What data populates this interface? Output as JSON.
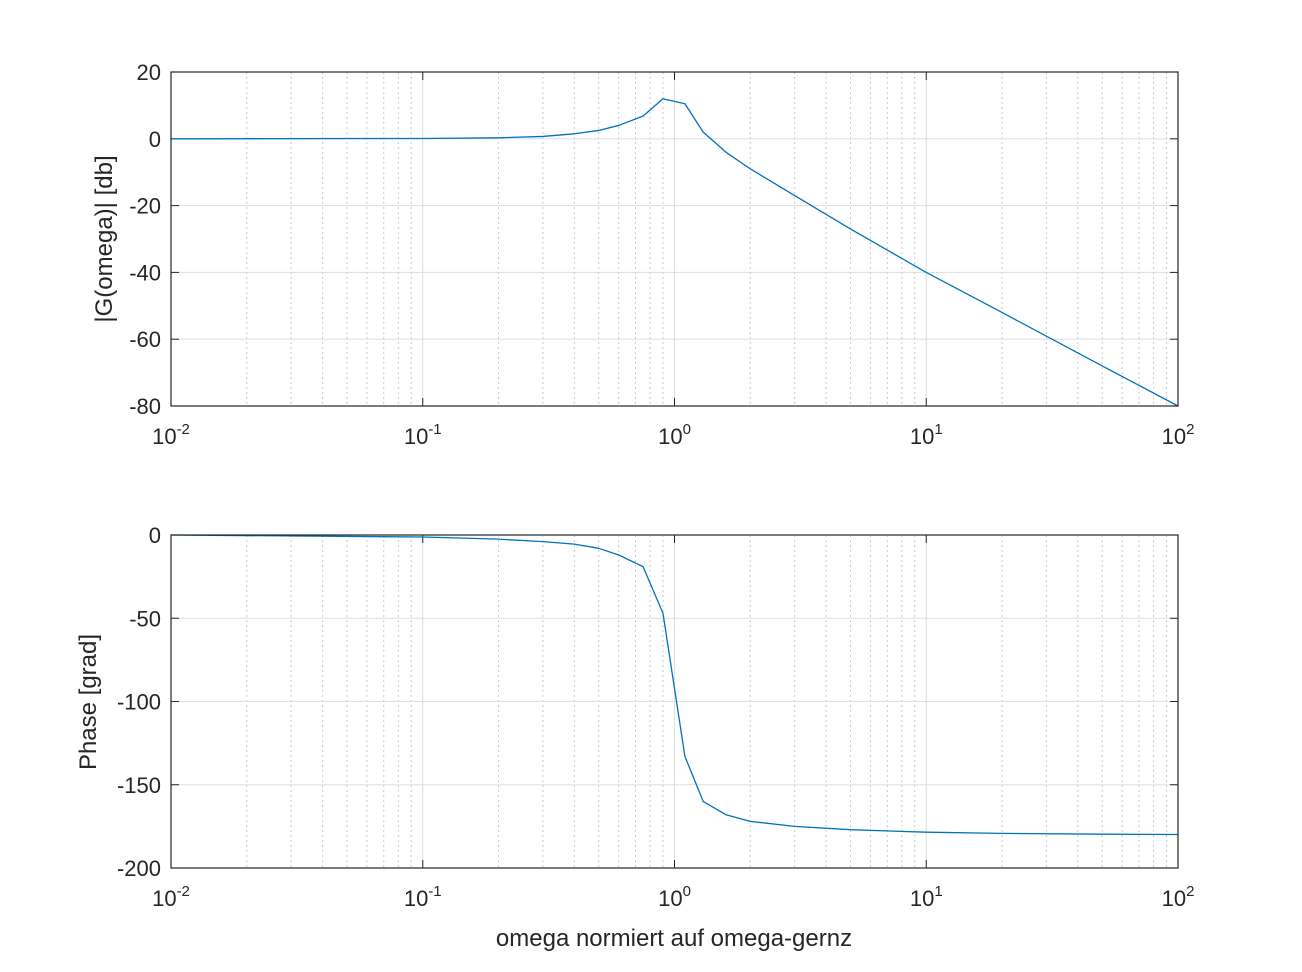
{
  "chart_data": [
    {
      "type": "line",
      "xscale": "log",
      "xlim": [
        0.01,
        100
      ],
      "ylim": [
        -80,
        20
      ],
      "xlabel": "",
      "ylabel": "|G(omega)| [db]",
      "yticks": [
        "20",
        "0",
        "-20",
        "-40",
        "-60",
        "-80"
      ],
      "xtick_base": "10",
      "xtick_exponents": [
        "-2",
        "-1",
        "0",
        "1",
        "2"
      ],
      "grid": true,
      "line_color": "#0072BD",
      "series": [
        {
          "x": [
            0.01,
            0.1,
            0.2,
            0.3,
            0.4,
            0.5,
            0.6,
            0.75,
            0.9,
            1.1,
            1.3,
            1.6,
            2.0,
            3.0,
            5.0,
            10,
            20,
            50,
            100
          ],
          "y": [
            0,
            0.1,
            0.3,
            0.7,
            1.5,
            2.5,
            4.0,
            6.8,
            12.0,
            10.5,
            2.0,
            -4.0,
            -9.0,
            -17.0,
            -27.0,
            -40.0,
            -52.0,
            -68.0,
            -80.0
          ]
        }
      ]
    },
    {
      "type": "line",
      "xscale": "log",
      "xlim": [
        0.01,
        100
      ],
      "ylim": [
        -200,
        0
      ],
      "xlabel": "omega normiert auf omega-gernz",
      "ylabel": "Phase [grad]",
      "yticks": [
        "0",
        "-50",
        "-100",
        "-150",
        "-200"
      ],
      "xtick_base": "10",
      "xtick_exponents": [
        "-2",
        "-1",
        "0",
        "1",
        "2"
      ],
      "grid": true,
      "line_color": "#0072BD",
      "series": [
        {
          "x": [
            0.01,
            0.1,
            0.2,
            0.3,
            0.4,
            0.5,
            0.6,
            0.75,
            0.9,
            1.1,
            1.3,
            1.6,
            2.0,
            3.0,
            5.0,
            10,
            20,
            50,
            100
          ],
          "y": [
            0,
            -1.2,
            -2.5,
            -4,
            -5.5,
            -8,
            -12,
            -19,
            -47,
            -133,
            -160,
            -168,
            -172,
            -175,
            -177,
            -178.5,
            -179.2,
            -179.7,
            -179.9
          ]
        }
      ]
    }
  ]
}
